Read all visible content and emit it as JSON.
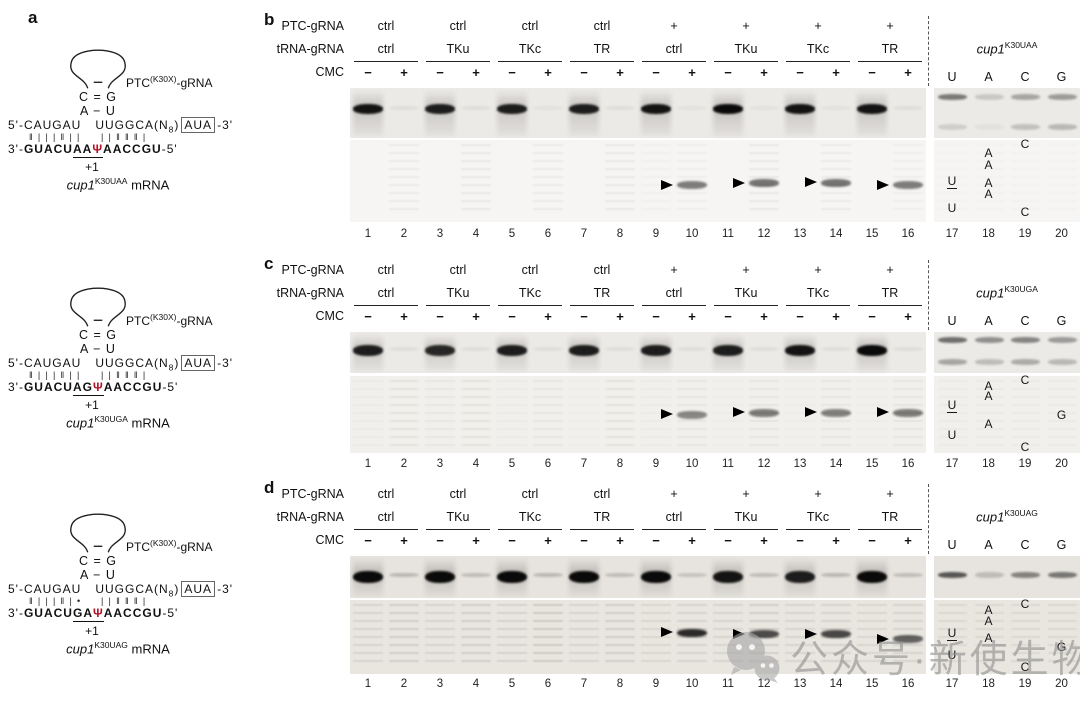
{
  "labels": {
    "a": "a",
    "b": "b",
    "c": "c",
    "d": "d"
  },
  "colors": {
    "psi_red": "#b11226",
    "watermark_gray": "#8e8e8e",
    "band_black": "#0a0a0a"
  },
  "lane_numbers": [
    "1",
    "2",
    "3",
    "4",
    "5",
    "6",
    "7",
    "8",
    "9",
    "10",
    "11",
    "12",
    "13",
    "14",
    "15",
    "16",
    "17",
    "18",
    "19",
    "20"
  ],
  "diagrams": [
    {
      "grna_label_base": "PTC",
      "grna_label_sup": "(K30X)",
      "grna_label_tail": "-gRNA",
      "pair_row1": "C = G",
      "pair_row2": "A − U",
      "strand5_prefix": "5'-",
      "strand5_seq1": "CAUGAU",
      "strand5_seq2": "UUGGCA(N",
      "strand5_sub": "8",
      "strand5_close": ")",
      "strand5_box": "AUA",
      "strand5_suffix": "-3'",
      "marks_left": "‖|||‖||",
      "marks_right": "||‖‖‖|",
      "mrna_prefix": "3'-",
      "mrna_seq1": "GUACU",
      "mrna_var1": "A",
      "mrna_var2": "A",
      "mrna_psi": "Ψ",
      "mrna_seq2": "AACCGU",
      "mrna_suffix": "-5'",
      "plus_one": "+1",
      "gene_base": "cup1",
      "gene_sup": "K30UAA",
      "gene_tail": " mRNA"
    },
    {
      "grna_label_base": "PTC",
      "grna_label_sup": "(K30X)",
      "grna_label_tail": "-gRNA",
      "pair_row1": "C = G",
      "pair_row2": "A − U",
      "strand5_prefix": "5'-",
      "strand5_seq1": "CAUGAU",
      "strand5_seq2": "UUGGCA(N",
      "strand5_sub": "8",
      "strand5_close": ")",
      "strand5_box": "AUA",
      "strand5_suffix": "-3'",
      "marks_left": "‖|||‖||",
      "marks_right": "||‖‖‖|",
      "mrna_prefix": "3'-",
      "mrna_seq1": "GUACU",
      "mrna_var1": "A",
      "mrna_var2": "G",
      "mrna_psi": "Ψ",
      "mrna_seq2": "AACCGU",
      "mrna_suffix": "-5'",
      "plus_one": "+1",
      "gene_base": "cup1",
      "gene_sup": "K30UGA",
      "gene_tail": " mRNA"
    },
    {
      "grna_label_base": "PTC",
      "grna_label_sup": "(K30X)",
      "grna_label_tail": "-gRNA",
      "pair_row1": "C = G",
      "pair_row2": "A − U",
      "strand5_prefix": "5'-",
      "strand5_seq1": "CAUGAU",
      "strand5_seq2": "UUGGCA(N",
      "strand5_sub": "8",
      "strand5_close": ")",
      "strand5_box": "AUA",
      "strand5_suffix": "-3'",
      "marks_left": "‖|||‖|•",
      "marks_right": "||‖‖‖|",
      "mrna_prefix": "3'-",
      "mrna_seq1": "GUACU",
      "mrna_var1": "G",
      "mrna_var2": "A",
      "mrna_psi": "Ψ",
      "mrna_seq2": "AACCGU",
      "mrna_suffix": "-5'",
      "plus_one": "+1",
      "gene_base": "cup1",
      "gene_sup": "K30UAG",
      "gene_tail": " mRNA"
    }
  ],
  "panels": [
    {
      "label": "b",
      "rows": {
        "ptc": "PTC-gRNA",
        "trna": "tRNA-gRNA",
        "cmc": "CMC"
      },
      "ptc_values": [
        "ctrl",
        "ctrl",
        "ctrl",
        "ctrl",
        "+",
        "+",
        "+",
        "+"
      ],
      "trna_values": [
        "ctrl",
        "TKu",
        "TKc",
        "TR",
        "ctrl",
        "TKu",
        "TKc",
        "TR"
      ],
      "cmc_pair": [
        "−",
        "+"
      ],
      "gene_base": "cup1",
      "gene_sup": "K30UAA",
      "seq_lane_labels": [
        "U",
        "A",
        "C",
        "G"
      ],
      "top_bands": [
        0.95,
        0.05,
        0.9,
        0.05,
        0.9,
        0.04,
        0.9,
        0.05,
        0.95,
        0.04,
        1,
        0.04,
        0.95,
        0.04,
        0.95,
        0.05
      ],
      "seq_top_bands": [
        0.5,
        0.15,
        0.3,
        0.35
      ],
      "seq_band_y": 0.18,
      "seq_top_bands2": [
        0.12,
        0.04,
        0.18,
        0.22
      ],
      "seq_band_y2": 0.78,
      "ladders": [
        0,
        0.1,
        0,
        0.12,
        0,
        0.1,
        0,
        0.12,
        0.05,
        0.08,
        0,
        0.12,
        0,
        0.1,
        0,
        0.08
      ],
      "seq_ladder": 0.03,
      "products": [
        {
          "lane": 10,
          "y": 0.55,
          "i": 0.5
        },
        {
          "lane": 12,
          "y": 0.53,
          "i": 0.55
        },
        {
          "lane": 14,
          "y": 0.52,
          "i": 0.55
        },
        {
          "lane": 16,
          "y": 0.55,
          "i": 0.5
        }
      ],
      "annotations": [
        {
          "col": 0,
          "t": "U",
          "u": true,
          "y": 0.5
        },
        {
          "col": 0,
          "t": "U",
          "y": 0.83
        },
        {
          "col": 1,
          "t": "A",
          "y": 0.16
        },
        {
          "col": 1,
          "t": "A",
          "y": 0.3
        },
        {
          "col": 1,
          "t": "A",
          "y": 0.52
        },
        {
          "col": 1,
          "t": "A",
          "y": 0.66
        },
        {
          "col": 2,
          "t": "C",
          "y": 0.05
        },
        {
          "col": 2,
          "t": "C",
          "y": 0.88
        }
      ]
    },
    {
      "label": "c",
      "rows": {
        "ptc": "PTC-gRNA",
        "trna": "tRNA-gRNA",
        "cmc": "CMC"
      },
      "ptc_values": [
        "ctrl",
        "ctrl",
        "ctrl",
        "ctrl",
        "+",
        "+",
        "+",
        "+"
      ],
      "trna_values": [
        "ctrl",
        "TKu",
        "TKc",
        "TR",
        "ctrl",
        "TKu",
        "TKc",
        "TR"
      ],
      "cmc_pair": [
        "−",
        "+"
      ],
      "gene_base": "cup1",
      "gene_sup": "K30UGA",
      "seq_lane_labels": [
        "U",
        "A",
        "C",
        "G"
      ],
      "top_bands": [
        0.9,
        0.05,
        0.85,
        0.06,
        0.9,
        0.05,
        0.9,
        0.05,
        0.9,
        0.05,
        0.9,
        0.05,
        0.95,
        0.05,
        1,
        0.06
      ],
      "seq_top_bands": [
        0.55,
        0.4,
        0.45,
        0.35
      ],
      "seq_band_y": 0.2,
      "seq_top_bands2": [
        0.3,
        0.2,
        0.28,
        0.22
      ],
      "seq_band_y2": 0.72,
      "ladders": [
        0.06,
        0.14,
        0.1,
        0.14,
        0.06,
        0.12,
        0.05,
        0.14,
        0.06,
        0.1,
        0.05,
        0.12,
        0.05,
        0.1,
        0.05,
        0.12
      ],
      "seq_ladder": 0.06,
      "products": [
        {
          "lane": 10,
          "y": 0.5,
          "i": 0.45
        },
        {
          "lane": 12,
          "y": 0.48,
          "i": 0.5
        },
        {
          "lane": 14,
          "y": 0.48,
          "i": 0.48
        },
        {
          "lane": 16,
          "y": 0.48,
          "i": 0.5
        }
      ],
      "annotations": [
        {
          "col": 0,
          "t": "U",
          "u": true,
          "y": 0.38
        },
        {
          "col": 0,
          "t": "U",
          "y": 0.76
        },
        {
          "col": 1,
          "t": "A",
          "y": 0.13
        },
        {
          "col": 1,
          "t": "A",
          "y": 0.26
        },
        {
          "col": 1,
          "t": "A",
          "y": 0.62
        },
        {
          "col": 2,
          "t": "C",
          "y": 0.05
        },
        {
          "col": 2,
          "t": "C",
          "y": 0.92
        },
        {
          "col": 3,
          "t": "G",
          "y": 0.5
        }
      ]
    },
    {
      "label": "d",
      "rows": {
        "ptc": "PTC-gRNA",
        "trna": "tRNA-gRNA",
        "cmc": "CMC"
      },
      "ptc_values": [
        "ctrl",
        "ctrl",
        "ctrl",
        "ctrl",
        "+",
        "+",
        "+",
        "+"
      ],
      "trna_values": [
        "ctrl",
        "TKu",
        "TKc",
        "TR",
        "ctrl",
        "TKu",
        "TKc",
        "TR"
      ],
      "cmc_pair": [
        "−",
        "+"
      ],
      "gene_base": "cup1",
      "gene_sup": "K30UAG",
      "seq_lane_labels": [
        "U",
        "A",
        "C",
        "G"
      ],
      "top_bands": [
        1,
        0.2,
        1,
        0.18,
        1,
        0.2,
        1,
        0.18,
        1,
        0.15,
        0.95,
        0.18,
        0.9,
        0.2,
        1,
        0.18
      ],
      "seq_top_bands": [
        0.65,
        0.18,
        0.45,
        0.5
      ],
      "seq_band_y": 0.45,
      "seq_top_bands2": [
        0,
        0,
        0,
        0
      ],
      "seq_band_y2": 0.8,
      "ladders": [
        0.2,
        0.25,
        0.2,
        0.25,
        0.22,
        0.28,
        0.2,
        0.25,
        0.18,
        0.22,
        0.2,
        0.25,
        0.2,
        0.22,
        0.18,
        0.22
      ],
      "seq_ladder": 0.15,
      "products": [
        {
          "lane": 10,
          "y": 0.44,
          "i": 0.85
        },
        {
          "lane": 12,
          "y": 0.46,
          "i": 0.7
        },
        {
          "lane": 14,
          "y": 0.46,
          "i": 0.72
        },
        {
          "lane": 16,
          "y": 0.53,
          "i": 0.6
        }
      ],
      "annotations": [
        {
          "col": 0,
          "t": "U",
          "u": true,
          "y": 0.44
        },
        {
          "col": 0,
          "t": "U",
          "y": 0.74
        },
        {
          "col": 1,
          "t": "A",
          "y": 0.13
        },
        {
          "col": 1,
          "t": "A",
          "y": 0.29
        },
        {
          "col": 1,
          "t": "A",
          "y": 0.52
        },
        {
          "col": 2,
          "t": "C",
          "y": 0.05
        },
        {
          "col": 2,
          "t": "C",
          "y": 0.9
        },
        {
          "col": 3,
          "t": "G",
          "y": 0.64
        }
      ]
    }
  ],
  "watermark": {
    "icon": "wechat-icon",
    "text": "公众号·新使生物"
  }
}
